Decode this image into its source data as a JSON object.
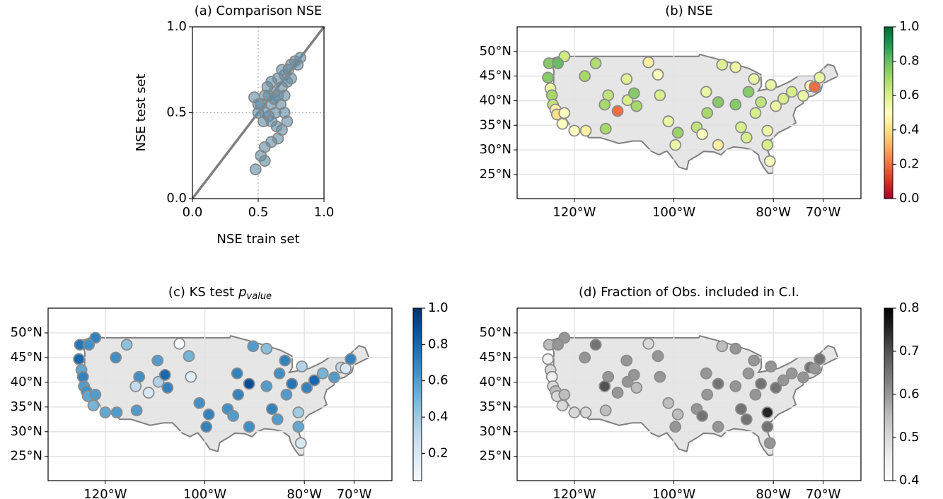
{
  "chart_data": [
    {
      "type": "scatter",
      "title": "(a) Comparison NSE",
      "xlabel": "NSE train set",
      "ylabel": "NSE test set",
      "x": [
        0.48,
        0.52,
        0.55,
        0.55,
        0.6,
        0.65,
        0.68,
        0.72,
        0.47,
        0.5,
        0.52,
        0.55,
        0.57,
        0.6,
        0.62,
        0.65,
        0.68,
        0.7,
        0.73,
        0.75,
        0.78,
        0.8,
        0.82,
        0.6,
        0.63,
        0.67,
        0.58,
        0.54,
        0.7,
        0.75,
        0.65,
        0.55,
        0.6,
        0.72,
        0.68,
        0.58,
        0.62,
        0.7,
        0.64,
        0.5
      ],
      "y": [
        0.17,
        0.25,
        0.22,
        0.3,
        0.33,
        0.35,
        0.4,
        0.45,
        0.59,
        0.5,
        0.55,
        0.6,
        0.65,
        0.68,
        0.62,
        0.7,
        0.65,
        0.72,
        0.75,
        0.78,
        0.8,
        0.78,
        0.82,
        0.55,
        0.5,
        0.55,
        0.48,
        0.45,
        0.6,
        0.7,
        0.6,
        0.5,
        0.45,
        0.68,
        0.75,
        0.6,
        0.58,
        0.5,
        0.42,
        0.55
      ],
      "color": "#5b8aa5",
      "edgecolor": "#888888",
      "hline": 0.5,
      "vline": 0.5,
      "xlim": [
        0,
        1
      ],
      "ylim": [
        0,
        1
      ],
      "xticks": [
        {
          "value": 0,
          "label": "0.0"
        },
        0.5,
        {
          "value": 1,
          "label": "1.0"
        }
      ],
      "yticks": [
        {
          "value": 0,
          "label": "0.0"
        },
        0.5,
        {
          "value": 1,
          "label": "1.0"
        }
      ]
    },
    {
      "type": "map",
      "title": "(b) NSE",
      "cmap": "RdYlGn",
      "clim": [
        0,
        1
      ],
      "grid": true,
      "cticks": [
        {
          "value": 0,
          "label": "0.0"
        },
        0.2,
        0.4,
        0.6,
        0.8,
        {
          "value": 1,
          "label": "1.0"
        }
      ],
      "x": [
        -122,
        -125.1,
        -123.3,
        -125.3,
        -124.8,
        -124.5,
        -124.3,
        -123.8,
        -123.5,
        -122,
        -122.4,
        -120,
        -117.7,
        -113.7,
        -117.9,
        -115.7,
        -113.2,
        -113.9,
        -111.3,
        -109.3,
        -109.5,
        -108,
        -107.5,
        -105.1,
        -103.2,
        -102.8,
        -101.1,
        -99.2,
        -99.7,
        -93.5,
        -95.4,
        -94.3,
        -93.3,
        -91.1,
        -90.3,
        -91.1,
        -87.6,
        -86.5,
        -85.4,
        -85,
        -83.6,
        -81.2,
        -81.2,
        -80.7,
        -82.5,
        -79.5,
        -78,
        -76.3,
        -74,
        -72.6,
        -71.7,
        -70.7,
        -80.5,
        -83.9,
        -87.6
      ],
      "y": [
        49,
        47.6,
        47.6,
        44.7,
        42.5,
        41.1,
        39.2,
        38.2,
        37.2,
        37.5,
        35.3,
        33.9,
        33.9,
        34.3,
        45,
        47.6,
        41.1,
        39.2,
        37.9,
        40.1,
        44.4,
        41.5,
        38.9,
        47.8,
        45.3,
        41.1,
        35.8,
        33.5,
        31,
        41.8,
        34.6,
        33.2,
        37.5,
        31,
        47.3,
        39.7,
        39.2,
        34.6,
        32.5,
        41.8,
        37.5,
        33.9,
        31,
        27.7,
        39.7,
        38.9,
        40.4,
        41.8,
        41,
        43,
        42.8,
        44.7,
        43.2,
        44.4,
        46.8
      ],
      "values": [
        0.62,
        0.75,
        0.8,
        0.75,
        0.55,
        0.7,
        0.65,
        0.45,
        0.4,
        0.5,
        0.5,
        0.5,
        0.45,
        0.7,
        0.7,
        0.68,
        0.65,
        0.7,
        0.2,
        0.6,
        0.58,
        0.75,
        0.7,
        0.45,
        0.5,
        0.6,
        0.55,
        0.72,
        0.55,
        0.55,
        0.65,
        0.5,
        0.7,
        0.45,
        0.58,
        0.75,
        0.75,
        0.6,
        0.6,
        0.75,
        0.6,
        0.55,
        0.6,
        0.5,
        0.65,
        0.55,
        0.6,
        0.6,
        0.55,
        0.5,
        0.2,
        0.55,
        0.55,
        0.55,
        0.55
      ],
      "xlim": [
        -131.5,
        -62.4
      ],
      "ylim": [
        20.1,
        55
      ],
      "xticks": [
        {
          "value": -120,
          "label": "120°W"
        },
        {
          "value": -100,
          "label": "100°W"
        },
        {
          "value": -80,
          "label": "80°W"
        },
        {
          "value": -70,
          "label": "70°W"
        }
      ],
      "yticks": [
        {
          "value": 25,
          "label": "25°N"
        },
        {
          "value": 30,
          "label": "30°N"
        },
        {
          "value": 35,
          "label": "35°N"
        },
        {
          "value": 40,
          "label": "40°N"
        },
        {
          "value": 45,
          "label": "45°N"
        },
        {
          "value": 50,
          "label": "50°N"
        }
      ]
    },
    {
      "type": "map",
      "title": "(c) KS test",
      "title_symbol": "p",
      "title_subscript": "value",
      "cmap": "Blues",
      "clim": [
        0.05,
        1
      ],
      "grid": true,
      "cticks": [
        0.2,
        0.4,
        0.6,
        0.8,
        {
          "value": 1,
          "label": "1.0"
        }
      ],
      "x": [
        -122,
        -125.1,
        -123.3,
        -125.3,
        -124.8,
        -124.5,
        -124.3,
        -123.8,
        -123.5,
        -122,
        -122.4,
        -120,
        -117.7,
        -113.7,
        -117.9,
        -115.7,
        -113.2,
        -113.9,
        -111.3,
        -109.3,
        -109.5,
        -108,
        -107.5,
        -105.1,
        -103.2,
        -102.8,
        -101.1,
        -99.2,
        -99.7,
        -93.5,
        -95.4,
        -94.3,
        -93.3,
        -91.1,
        -90.3,
        -91.1,
        -87.6,
        -86.5,
        -85.4,
        -85,
        -83.6,
        -81.2,
        -81.2,
        -80.7,
        -82.5,
        -79.5,
        -78,
        -76.3,
        -74,
        -72.6,
        -71.7,
        -70.7,
        -80.5,
        -83.9,
        -87.6
      ],
      "y": [
        49,
        47.6,
        47.6,
        44.7,
        42.5,
        41.1,
        39.2,
        38.2,
        37.2,
        37.5,
        35.3,
        33.9,
        33.9,
        34.3,
        45,
        47.6,
        41.1,
        39.2,
        37.9,
        40.1,
        44.4,
        41.5,
        38.9,
        47.8,
        45.3,
        41.1,
        35.8,
        33.5,
        31,
        41.8,
        34.6,
        33.2,
        37.5,
        31,
        47.3,
        39.7,
        39.2,
        34.6,
        32.5,
        41.8,
        37.5,
        33.9,
        31,
        27.7,
        39.7,
        38.9,
        40.4,
        41.8,
        41,
        43,
        42.8,
        44.7,
        43.2,
        44.4,
        46.8
      ],
      "values": [
        0.7,
        0.75,
        0.65,
        0.8,
        0.55,
        0.7,
        0.6,
        0.65,
        0.55,
        0.6,
        0.5,
        0.55,
        0.6,
        0.6,
        0.65,
        0.45,
        0.65,
        0.3,
        0.2,
        0.35,
        0.6,
        0.8,
        0.7,
        0.05,
        0.5,
        0.15,
        0.65,
        0.7,
        0.7,
        0.7,
        0.65,
        0.6,
        0.7,
        0.65,
        0.6,
        0.9,
        0.6,
        0.7,
        0.6,
        0.65,
        0.6,
        0.4,
        0.55,
        0.2,
        0.75,
        0.7,
        0.8,
        0.5,
        0.6,
        0.3,
        0.2,
        0.7,
        0.35,
        0.7,
        0.45
      ],
      "xlim": [
        -131.5,
        -62.4
      ],
      "ylim": [
        20.1,
        55
      ],
      "xticks": [
        {
          "value": -120,
          "label": "120°W"
        },
        {
          "value": -100,
          "label": "100°W"
        },
        {
          "value": -80,
          "label": "80°W"
        },
        {
          "value": -70,
          "label": "70°W"
        }
      ],
      "yticks": [
        {
          "value": 25,
          "label": "25°N"
        },
        {
          "value": 30,
          "label": "30°N"
        },
        {
          "value": 35,
          "label": "35°N"
        },
        {
          "value": 40,
          "label": "40°N"
        },
        {
          "value": 45,
          "label": "45°N"
        },
        {
          "value": 50,
          "label": "50°N"
        }
      ]
    },
    {
      "type": "map",
      "title": "(d) Fraction of Obs. included in C.I.",
      "cmap": "Greys",
      "clim": [
        0.4,
        0.8
      ],
      "grid": true,
      "cticks": [
        0.4,
        0.5,
        0.6,
        0.7,
        0.8
      ],
      "x": [
        -122,
        -125.1,
        -123.3,
        -125.3,
        -124.8,
        -124.5,
        -124.3,
        -123.8,
        -123.5,
        -122,
        -122.4,
        -120,
        -117.7,
        -113.7,
        -117.9,
        -115.7,
        -113.2,
        -113.9,
        -111.3,
        -109.3,
        -109.5,
        -108,
        -107.5,
        -105.1,
        -103.2,
        -102.8,
        -101.1,
        -99.2,
        -99.7,
        -93.5,
        -95.4,
        -94.3,
        -93.3,
        -91.1,
        -90.3,
        -91.1,
        -87.6,
        -86.5,
        -85.4,
        -85,
        -83.6,
        -81.2,
        -81.2,
        -80.7,
        -82.5,
        -79.5,
        -78,
        -76.3,
        -74,
        -72.6,
        -71.7,
        -70.7,
        -80.5,
        -83.9,
        -87.6
      ],
      "y": [
        49,
        47.6,
        47.6,
        44.7,
        42.5,
        41.1,
        39.2,
        38.2,
        37.2,
        37.5,
        35.3,
        33.9,
        33.9,
        34.3,
        45,
        47.6,
        41.1,
        39.2,
        37.9,
        40.1,
        44.4,
        41.5,
        38.9,
        47.8,
        45.3,
        41.1,
        35.8,
        33.5,
        31,
        41.8,
        34.6,
        33.2,
        37.5,
        31,
        47.3,
        39.7,
        39.2,
        34.6,
        32.5,
        41.8,
        37.5,
        33.9,
        31,
        27.7,
        39.7,
        38.9,
        40.4,
        41.8,
        41,
        43,
        42.8,
        44.7,
        43.2,
        44.4,
        46.8
      ],
      "values": [
        0.6,
        0.55,
        0.6,
        0.45,
        0.5,
        0.45,
        0.5,
        0.55,
        0.5,
        0.55,
        0.5,
        0.5,
        0.5,
        0.55,
        0.6,
        0.65,
        0.6,
        0.7,
        0.6,
        0.6,
        0.6,
        0.6,
        0.55,
        0.5,
        0.6,
        0.6,
        0.55,
        0.55,
        0.6,
        0.6,
        0.6,
        0.65,
        0.6,
        0.6,
        0.55,
        0.65,
        0.6,
        0.65,
        0.65,
        0.6,
        0.6,
        0.75,
        0.65,
        0.6,
        0.65,
        0.65,
        0.6,
        0.6,
        0.6,
        0.65,
        0.6,
        0.65,
        0.6,
        0.6,
        0.6
      ],
      "xlim": [
        -131.5,
        -62.4
      ],
      "ylim": [
        20.1,
        55
      ],
      "xticks": [
        {
          "value": -120,
          "label": "120°W"
        },
        {
          "value": -100,
          "label": "100°W"
        },
        {
          "value": -80,
          "label": "80°W"
        },
        {
          "value": -70,
          "label": "70°W"
        }
      ],
      "yticks": [
        {
          "value": 25,
          "label": "25°N"
        },
        {
          "value": 30,
          "label": "30°N"
        },
        {
          "value": 35,
          "label": "35°N"
        },
        {
          "value": 40,
          "label": "40°N"
        },
        {
          "value": 45,
          "label": "45°N"
        },
        {
          "value": 50,
          "label": "50°N"
        }
      ]
    }
  ]
}
